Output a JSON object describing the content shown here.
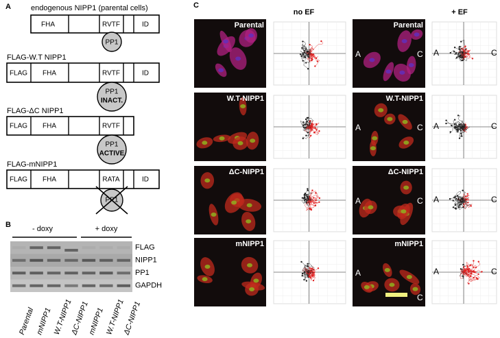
{
  "panel_a": {
    "label": "A",
    "constructs": [
      {
        "title": "endogenous NIPP1 (parental cells)",
        "domains": [
          "FHA",
          "RVTF",
          "ID"
        ],
        "pp1": "PP1"
      },
      {
        "title": "FLAG-W.T NIPP1",
        "domains": [
          "FLAG",
          "FHA",
          "RVTF",
          "ID"
        ],
        "pp1": "PP1",
        "pp1_state": "INACT."
      },
      {
        "title": "FLAG-ΔC NIPP1",
        "domains": [
          "FLAG",
          "FHA",
          "RVTF"
        ],
        "pp1": "PP1",
        "pp1_state": "ACTIVE"
      },
      {
        "title": "FLAG-mNIPP1",
        "domains": [
          "FLAG",
          "FHA",
          "RATA",
          "ID"
        ],
        "pp1": "PP1"
      }
    ]
  },
  "panel_b": {
    "label": "B",
    "groups": [
      "- doxy",
      "+ doxy"
    ],
    "blots": [
      "FLAG",
      "NIPP1",
      "PP1",
      "GAPDH"
    ],
    "lanes": [
      "Parental",
      "mNIPP1",
      "W.T-NIPP1",
      "ΔC-NIPP1",
      "mNIPP1",
      "W.T-NIPP1",
      "ΔC-NIPP1"
    ]
  },
  "panel_c": {
    "label": "C",
    "conditions": [
      "no EF",
      "+ EF"
    ],
    "rows": [
      "Parental",
      "W.T-NIPP1",
      "ΔC-NIPP1",
      "mNIPP1"
    ],
    "anode": "A",
    "cathode": "C"
  }
}
